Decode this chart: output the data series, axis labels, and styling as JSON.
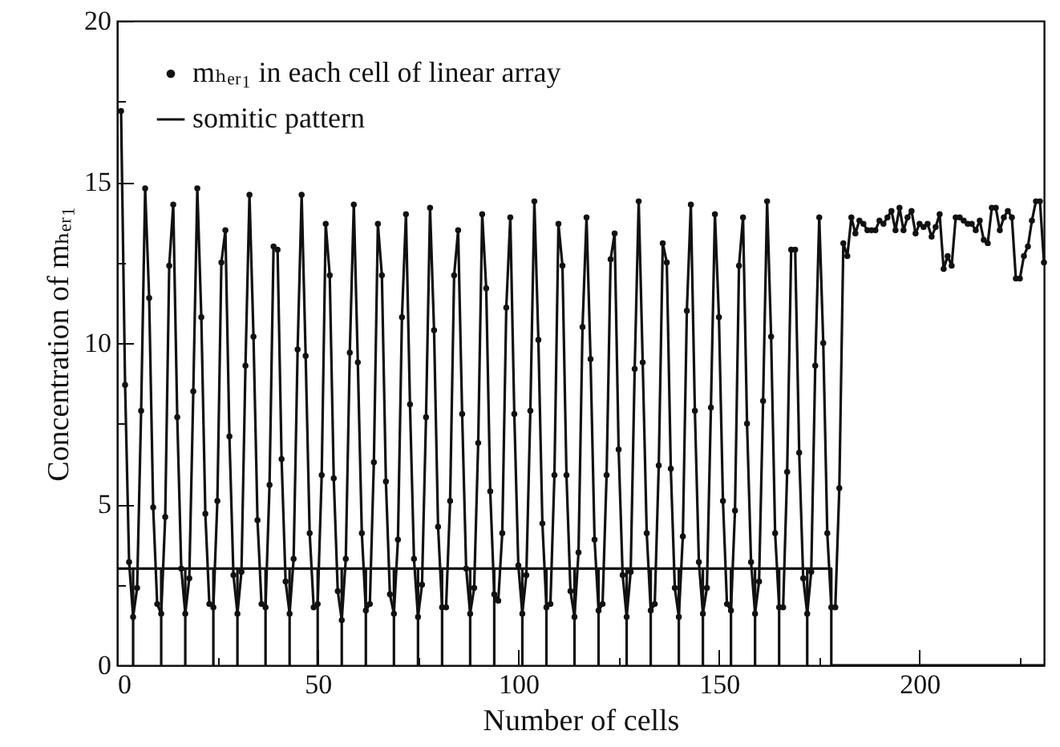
{
  "chart_data": {
    "type": "line",
    "xlabel": "Number of cells",
    "ylabel": "Concentration of mₕₑᵣ₁",
    "xlim": [
      0,
      231
    ],
    "ylim": [
      0,
      20
    ],
    "xticks": [
      0,
      {
        "value": 25,
        "label": null
      },
      50,
      {
        "value": 75,
        "label": null
      },
      100,
      {
        "value": 125,
        "label": null
      },
      150,
      {
        "value": 175,
        "label": null
      },
      200,
      {
        "value": 225,
        "label": null
      }
    ],
    "yticks": [
      0,
      {
        "value": 2.5,
        "label": null
      },
      5,
      {
        "value": 7.5,
        "label": null
      },
      10,
      {
        "value": 12.5,
        "label": null
      },
      15,
      {
        "value": 17.5,
        "label": null
      },
      20
    ],
    "legend": "top left",
    "grid": false,
    "line_style": "solid",
    "series": [
      {
        "name": "mₕₑᵣ₁ in each cell of linear array",
        "color": "#111111",
        "marker": "circle",
        "x": [
          1,
          2,
          3,
          4,
          5,
          6,
          7,
          8,
          9,
          10,
          11,
          12,
          13,
          14,
          15,
          16,
          17,
          18,
          19,
          20,
          21,
          22,
          23,
          24,
          25,
          26,
          27,
          28,
          29,
          30,
          31,
          32,
          33,
          34,
          35,
          36,
          37,
          38,
          39,
          40,
          41,
          42,
          43,
          44,
          45,
          46,
          47,
          48,
          49,
          50,
          51,
          52,
          53,
          54,
          55,
          56,
          57,
          58,
          59,
          60,
          61,
          62,
          63,
          64,
          65,
          66,
          67,
          68,
          69,
          70,
          71,
          72,
          73,
          74,
          75,
          76,
          77,
          78,
          79,
          80,
          81,
          82,
          83,
          84,
          85,
          86,
          87,
          88,
          89,
          90,
          91,
          92,
          93,
          94,
          95,
          96,
          97,
          98,
          99,
          100,
          101,
          102,
          103,
          104,
          105,
          106,
          107,
          108,
          109,
          110,
          111,
          112,
          113,
          114,
          115,
          116,
          117,
          118,
          119,
          120,
          121,
          122,
          123,
          124,
          125,
          126,
          127,
          128,
          129,
          130,
          131,
          132,
          133,
          134,
          135,
          136,
          137,
          138,
          139,
          140,
          141,
          142,
          143,
          144,
          145,
          146,
          147,
          148,
          149,
          150,
          151,
          152,
          153,
          154,
          155,
          156,
          157,
          158,
          159,
          160,
          161,
          162,
          163,
          164,
          165,
          166,
          167,
          168,
          169,
          170,
          171,
          172,
          173,
          174,
          175,
          176,
          177,
          178,
          179,
          180,
          181,
          182,
          183,
          184,
          185,
          186,
          187,
          188,
          189,
          190,
          191,
          192,
          193,
          194,
          195,
          196,
          197,
          198,
          199,
          200,
          201,
          202,
          203,
          204,
          205,
          206,
          207,
          208,
          209,
          210,
          211,
          212,
          213,
          214,
          215,
          216,
          217,
          218,
          219,
          220,
          221,
          222,
          223,
          224,
          225,
          226,
          227,
          228,
          229,
          230,
          231
        ],
        "values": [
          17.2,
          8.7,
          3.2,
          1.5,
          2.4,
          7.9,
          14.8,
          11.4,
          4.9,
          1.9,
          1.6,
          4.6,
          12.4,
          14.3,
          7.7,
          3.0,
          1.6,
          2.7,
          8.5,
          14.8,
          10.8,
          4.7,
          1.9,
          1.8,
          5.1,
          12.5,
          13.5,
          7.1,
          2.8,
          1.6,
          2.9,
          9.3,
          14.6,
          10.2,
          4.5,
          1.9,
          1.8,
          5.6,
          13.0,
          12.9,
          6.4,
          2.6,
          1.6,
          3.3,
          9.8,
          14.6,
          9.6,
          4.1,
          1.8,
          1.9,
          5.9,
          13.7,
          12.1,
          5.8,
          2.3,
          1.4,
          3.3,
          9.7,
          14.3,
          9.4,
          4.1,
          1.7,
          1.9,
          6.3,
          13.7,
          12.1,
          5.7,
          2.2,
          1.6,
          3.9,
          10.8,
          14.0,
          8.1,
          3.3,
          1.5,
          2.5,
          7.7,
          14.2,
          10.4,
          4.3,
          1.8,
          1.8,
          5.1,
          12.1,
          13.5,
          7.8,
          3.0,
          1.6,
          2.4,
          6.9,
          14.0,
          11.7,
          5.4,
          2.2,
          2.0,
          4.1,
          11.1,
          13.9,
          7.8,
          3.1,
          1.6,
          2.8,
          7.9,
          14.4,
          10.1,
          4.4,
          1.8,
          1.9,
          5.9,
          13.7,
          12.4,
          5.9,
          2.3,
          1.5,
          3.5,
          10.5,
          13.9,
          9.5,
          3.9,
          1.7,
          1.9,
          5.9,
          12.6,
          13.4,
          6.7,
          2.8,
          1.5,
          2.9,
          9.2,
          14.4,
          9.4,
          4.1,
          1.7,
          1.9,
          6.2,
          13.1,
          12.5,
          6.1,
          2.4,
          1.5,
          4.0,
          11.0,
          14.3,
          7.9,
          3.2,
          1.6,
          2.4,
          8.0,
          14.0,
          10.8,
          5.1,
          1.9,
          1.7,
          4.8,
          12.4,
          13.9,
          7.5,
          3.2,
          1.6,
          2.6,
          8.2,
          14.4,
          10.2,
          4.1,
          1.8,
          1.8,
          6.0,
          12.9,
          12.9,
          6.6,
          2.7,
          1.6,
          2.9,
          9.3,
          13.9,
          10.0,
          4.1,
          1.8,
          1.8,
          5.5,
          13.1,
          12.7,
          13.9,
          13.4,
          13.8,
          13.7,
          13.5,
          13.5,
          13.5,
          13.8,
          13.7,
          13.9,
          14.1,
          13.5,
          14.2,
          13.5,
          13.9,
          14.1,
          13.4,
          13.7,
          13.6,
          13.7,
          13.3,
          13.6,
          14.0,
          12.3,
          12.7,
          12.4,
          13.9,
          13.9,
          13.8,
          13.7,
          13.7,
          13.5,
          13.8,
          13.2,
          13.1,
          14.2,
          14.2,
          13.5,
          13.9,
          14.1,
          13.9,
          12.0,
          12.0,
          12.7,
          13.0,
          13.8,
          14.4,
          14.4,
          12.5
        ]
      },
      {
        "name": "somitic pattern",
        "color": "#111111",
        "marker": "none",
        "x": [
          0,
          4,
          4,
          4,
          11,
          11,
          11,
          17,
          17,
          17,
          24,
          24,
          24,
          30,
          30,
          30,
          37,
          37,
          37,
          43,
          43,
          43,
          50,
          50,
          50,
          56,
          56,
          56,
          62,
          62,
          62,
          69,
          69,
          69,
          75,
          75,
          75,
          81,
          81,
          81,
          88,
          88,
          88,
          94,
          94,
          94,
          101,
          101,
          101,
          107,
          107,
          107,
          114,
          114,
          114,
          120,
          120,
          120,
          127,
          127,
          127,
          133,
          133,
          133,
          140,
          140,
          140,
          146,
          146,
          146,
          153,
          153,
          153,
          159,
          159,
          159,
          165,
          165,
          165,
          172,
          172,
          172,
          178,
          178,
          231
        ],
        "values": [
          3,
          3,
          0,
          3,
          3,
          0,
          3,
          3,
          0,
          3,
          3,
          0,
          3,
          3,
          0,
          3,
          3,
          0,
          3,
          3,
          0,
          3,
          3,
          0,
          3,
          3,
          0,
          3,
          3,
          0,
          3,
          3,
          0,
          3,
          3,
          0,
          3,
          3,
          0,
          3,
          3,
          0,
          3,
          3,
          0,
          3,
          3,
          0,
          3,
          3,
          0,
          3,
          3,
          0,
          3,
          3,
          0,
          3,
          3,
          0,
          3,
          3,
          0,
          3,
          3,
          0,
          3,
          3,
          0,
          3,
          3,
          0,
          3,
          3,
          0,
          3,
          3,
          0,
          3,
          3,
          0,
          3,
          3,
          0,
          0
        ]
      }
    ]
  }
}
